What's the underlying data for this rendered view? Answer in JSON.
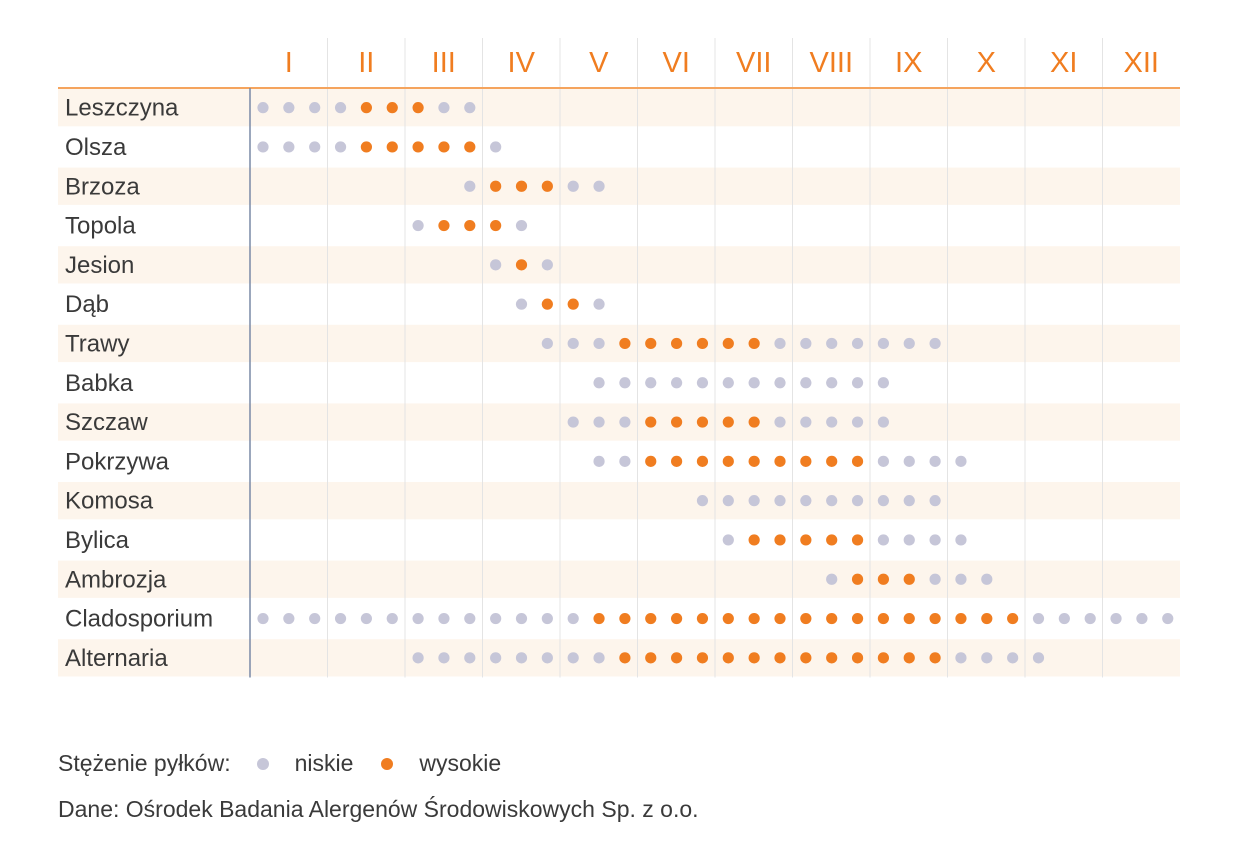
{
  "chart_data": {
    "type": "scatter",
    "title": "",
    "xlabel": "",
    "ylabel": "",
    "months": [
      "I",
      "II",
      "III",
      "IV",
      "V",
      "VI",
      "VII",
      "VIII",
      "IX",
      "X",
      "XI",
      "XII"
    ],
    "ticks_per_month": 3,
    "rows": [
      {
        "name": "Leszczyna",
        "dots": [
          [
            0,
            "L"
          ],
          [
            1,
            "L"
          ],
          [
            2,
            "L"
          ],
          [
            3,
            "L"
          ],
          [
            4,
            "H"
          ],
          [
            5,
            "H"
          ],
          [
            6,
            "H"
          ],
          [
            7,
            "L"
          ],
          [
            8,
            "L"
          ]
        ]
      },
      {
        "name": "Olsza",
        "dots": [
          [
            0,
            "L"
          ],
          [
            1,
            "L"
          ],
          [
            2,
            "L"
          ],
          [
            3,
            "L"
          ],
          [
            4,
            "H"
          ],
          [
            5,
            "H"
          ],
          [
            6,
            "H"
          ],
          [
            7,
            "H"
          ],
          [
            8,
            "H"
          ],
          [
            9,
            "L"
          ]
        ]
      },
      {
        "name": "Brzoza",
        "dots": [
          [
            8,
            "L"
          ],
          [
            9,
            "H"
          ],
          [
            10,
            "H"
          ],
          [
            11,
            "H"
          ],
          [
            12,
            "L"
          ],
          [
            13,
            "L"
          ]
        ]
      },
      {
        "name": "Topola",
        "dots": [
          [
            6,
            "L"
          ],
          [
            7,
            "H"
          ],
          [
            8,
            "H"
          ],
          [
            9,
            "H"
          ],
          [
            10,
            "L"
          ]
        ]
      },
      {
        "name": "Jesion",
        "dots": [
          [
            9,
            "L"
          ],
          [
            10,
            "H"
          ],
          [
            11,
            "L"
          ]
        ]
      },
      {
        "name": "Dąb",
        "dots": [
          [
            10,
            "L"
          ],
          [
            11,
            "H"
          ],
          [
            12,
            "H"
          ],
          [
            13,
            "L"
          ]
        ]
      },
      {
        "name": "Trawy",
        "dots": [
          [
            11,
            "L"
          ],
          [
            12,
            "L"
          ],
          [
            13,
            "L"
          ],
          [
            14,
            "H"
          ],
          [
            15,
            "H"
          ],
          [
            16,
            "H"
          ],
          [
            17,
            "H"
          ],
          [
            18,
            "H"
          ],
          [
            19,
            "H"
          ],
          [
            20,
            "L"
          ],
          [
            21,
            "L"
          ],
          [
            22,
            "L"
          ],
          [
            23,
            "L"
          ],
          [
            24,
            "L"
          ],
          [
            25,
            "L"
          ],
          [
            26,
            "L"
          ]
        ]
      },
      {
        "name": "Babka",
        "dots": [
          [
            13,
            "L"
          ],
          [
            14,
            "L"
          ],
          [
            15,
            "L"
          ],
          [
            16,
            "L"
          ],
          [
            17,
            "L"
          ],
          [
            18,
            "L"
          ],
          [
            19,
            "L"
          ],
          [
            20,
            "L"
          ],
          [
            21,
            "L"
          ],
          [
            22,
            "L"
          ],
          [
            23,
            "L"
          ],
          [
            24,
            "L"
          ]
        ]
      },
      {
        "name": "Szczaw",
        "dots": [
          [
            12,
            "L"
          ],
          [
            13,
            "L"
          ],
          [
            14,
            "L"
          ],
          [
            15,
            "H"
          ],
          [
            16,
            "H"
          ],
          [
            17,
            "H"
          ],
          [
            18,
            "H"
          ],
          [
            19,
            "H"
          ],
          [
            20,
            "L"
          ],
          [
            21,
            "L"
          ],
          [
            22,
            "L"
          ],
          [
            23,
            "L"
          ],
          [
            24,
            "L"
          ]
        ]
      },
      {
        "name": "Pokrzywa",
        "dots": [
          [
            13,
            "L"
          ],
          [
            14,
            "L"
          ],
          [
            15,
            "H"
          ],
          [
            16,
            "H"
          ],
          [
            17,
            "H"
          ],
          [
            18,
            "H"
          ],
          [
            19,
            "H"
          ],
          [
            20,
            "H"
          ],
          [
            21,
            "H"
          ],
          [
            22,
            "H"
          ],
          [
            23,
            "H"
          ],
          [
            24,
            "L"
          ],
          [
            25,
            "L"
          ],
          [
            26,
            "L"
          ],
          [
            27,
            "L"
          ]
        ]
      },
      {
        "name": "Komosa",
        "dots": [
          [
            17,
            "L"
          ],
          [
            18,
            "L"
          ],
          [
            19,
            "L"
          ],
          [
            20,
            "L"
          ],
          [
            21,
            "L"
          ],
          [
            22,
            "L"
          ],
          [
            23,
            "L"
          ],
          [
            24,
            "L"
          ],
          [
            25,
            "L"
          ],
          [
            26,
            "L"
          ]
        ]
      },
      {
        "name": "Bylica",
        "dots": [
          [
            18,
            "L"
          ],
          [
            19,
            "H"
          ],
          [
            20,
            "H"
          ],
          [
            21,
            "H"
          ],
          [
            22,
            "H"
          ],
          [
            23,
            "H"
          ],
          [
            24,
            "L"
          ],
          [
            25,
            "L"
          ],
          [
            26,
            "L"
          ],
          [
            27,
            "L"
          ]
        ]
      },
      {
        "name": "Ambrozja",
        "dots": [
          [
            22,
            "L"
          ],
          [
            23,
            "H"
          ],
          [
            24,
            "H"
          ],
          [
            25,
            "H"
          ],
          [
            26,
            "L"
          ],
          [
            27,
            "L"
          ],
          [
            28,
            "L"
          ]
        ]
      },
      {
        "name": "Cladosporium",
        "dots": [
          [
            0,
            "L"
          ],
          [
            1,
            "L"
          ],
          [
            2,
            "L"
          ],
          [
            3,
            "L"
          ],
          [
            4,
            "L"
          ],
          [
            5,
            "L"
          ],
          [
            6,
            "L"
          ],
          [
            7,
            "L"
          ],
          [
            8,
            "L"
          ],
          [
            9,
            "L"
          ],
          [
            10,
            "L"
          ],
          [
            11,
            "L"
          ],
          [
            12,
            "L"
          ],
          [
            13,
            "H"
          ],
          [
            14,
            "H"
          ],
          [
            15,
            "H"
          ],
          [
            16,
            "H"
          ],
          [
            17,
            "H"
          ],
          [
            18,
            "H"
          ],
          [
            19,
            "H"
          ],
          [
            20,
            "H"
          ],
          [
            21,
            "H"
          ],
          [
            22,
            "H"
          ],
          [
            23,
            "H"
          ],
          [
            24,
            "H"
          ],
          [
            25,
            "H"
          ],
          [
            26,
            "H"
          ],
          [
            27,
            "H"
          ],
          [
            28,
            "H"
          ],
          [
            29,
            "H"
          ],
          [
            30,
            "L"
          ],
          [
            31,
            "L"
          ],
          [
            32,
            "L"
          ],
          [
            33,
            "L"
          ],
          [
            34,
            "L"
          ],
          [
            35,
            "L"
          ]
        ]
      },
      {
        "name": "Alternaria",
        "dots": [
          [
            6,
            "L"
          ],
          [
            7,
            "L"
          ],
          [
            8,
            "L"
          ],
          [
            9,
            "L"
          ],
          [
            10,
            "L"
          ],
          [
            11,
            "L"
          ],
          [
            12,
            "L"
          ],
          [
            13,
            "L"
          ],
          [
            14,
            "H"
          ],
          [
            15,
            "H"
          ],
          [
            16,
            "H"
          ],
          [
            17,
            "H"
          ],
          [
            18,
            "H"
          ],
          [
            19,
            "H"
          ],
          [
            20,
            "H"
          ],
          [
            21,
            "H"
          ],
          [
            22,
            "H"
          ],
          [
            23,
            "H"
          ],
          [
            24,
            "H"
          ],
          [
            25,
            "H"
          ],
          [
            26,
            "H"
          ],
          [
            27,
            "L"
          ],
          [
            28,
            "L"
          ],
          [
            29,
            "L"
          ],
          [
            30,
            "L"
          ]
        ]
      }
    ],
    "levels": {
      "L": "niskie",
      "H": "wysokie"
    }
  },
  "colors": {
    "low": "#c6c6d8",
    "high": "#f07d20",
    "month_text": "#f07d20",
    "header_line": "#f5a45d",
    "band": "#fdf5ec",
    "grid": "#e4e4e4",
    "axis": "#7a8aa6"
  },
  "legend": {
    "title": "Stężenie pyłków:",
    "low_label": "niskie",
    "high_label": "wysokie"
  },
  "source": "Dane: Ośrodek Badania Alergenów Środowiskowych Sp. z o.o."
}
